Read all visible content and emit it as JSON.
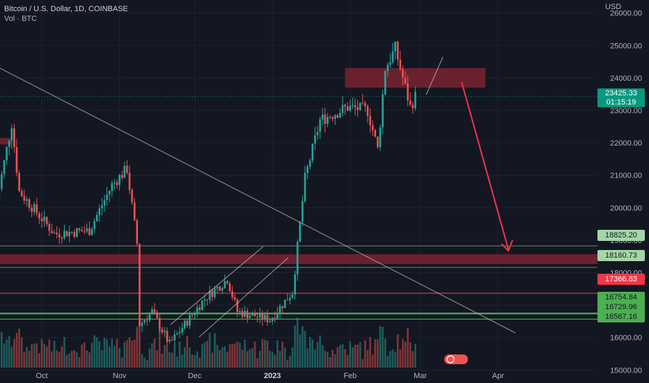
{
  "header": {
    "title": "Bitcoin / U.S. Dollar, 1D, COINBASE",
    "volume_label": "Vol · BTC"
  },
  "axis": {
    "currency": "USD"
  },
  "colors": {
    "background": "#131722",
    "grid": "#1e222d",
    "up": "#26a69a",
    "down": "#ef5350",
    "zone": "#7a2330",
    "trendline": "#c8c2b0",
    "green_level": "#4caf50",
    "red_level": "#f23645",
    "arrow": "#f23645"
  },
  "tags": {
    "last_price": "23425.33",
    "countdown": "01:15:19",
    "level_1": "18825.20",
    "level_2": "18160.73",
    "level_3": "17366.83",
    "level_4": "16754.84",
    "level_5": "16729.96",
    "level_6": "16567.16"
  },
  "chart_data": {
    "type": "candlestick",
    "title": "Bitcoin / U.S. Dollar, 1D, COINBASE",
    "ylabel": "USD",
    "ylim": [
      14600,
      26400
    ],
    "y_ticks": [
      15000,
      16000,
      17000,
      18000,
      19000,
      20000,
      21000,
      22000,
      23000,
      24000,
      25000,
      26000
    ],
    "x_ticks": [
      "Oct",
      "Nov",
      "Dec",
      "2023",
      "Feb",
      "Mar",
      "Apr"
    ],
    "price_path": [
      {
        "date": "2022-09-13",
        "price": 20200
      },
      {
        "date": "2022-09-19",
        "price": 22600
      },
      {
        "date": "2022-09-22",
        "price": 20500
      },
      {
        "date": "2022-10-06",
        "price": 19200
      },
      {
        "date": "2022-10-20",
        "price": 19300
      },
      {
        "date": "2022-10-29",
        "price": 20700
      },
      {
        "date": "2022-11-04",
        "price": 21200
      },
      {
        "date": "2022-11-08",
        "price": 18900
      },
      {
        "date": "2022-11-09",
        "price": 16400
      },
      {
        "date": "2022-11-14",
        "price": 16800
      },
      {
        "date": "2022-11-21",
        "price": 15800
      },
      {
        "date": "2022-12-05",
        "price": 17200
      },
      {
        "date": "2022-12-14",
        "price": 17800
      },
      {
        "date": "2022-12-18",
        "price": 16800
      },
      {
        "date": "2022-12-31",
        "price": 16550
      },
      {
        "date": "2023-01-09",
        "price": 17400
      },
      {
        "date": "2023-01-14",
        "price": 20900
      },
      {
        "date": "2023-01-20",
        "price": 22700
      },
      {
        "date": "2023-01-31",
        "price": 23100
      },
      {
        "date": "2023-02-08",
        "price": 23000
      },
      {
        "date": "2023-02-12",
        "price": 21800
      },
      {
        "date": "2023-02-15",
        "price": 24300
      },
      {
        "date": "2023-02-19",
        "price": 24900
      },
      {
        "date": "2023-02-22",
        "price": 24000
      },
      {
        "date": "2023-02-25",
        "price": 23100
      },
      {
        "date": "2023-02-27",
        "price": 23425
      }
    ],
    "resistance_zones": [
      {
        "from": "2023-01-30",
        "to": "2023-03-27",
        "low": 23700,
        "high": 24300
      },
      {
        "from": "2022-09-10",
        "to": "2022-09-19",
        "low": 21950,
        "high": 22150
      }
    ],
    "support_zone": {
      "low": 18160.73,
      "high": 18825.2
    },
    "horizontal_levels": [
      {
        "value": 17366.83,
        "color": "#f23645"
      },
      {
        "value": 16754.84,
        "color": "#4caf50"
      },
      {
        "value": 16729.96,
        "color": "#4caf50"
      },
      {
        "value": 16567.16,
        "color": "#4caf50"
      }
    ],
    "last_price": 23425.33,
    "projection_arrow": {
      "from": {
        "date": "2023-02-27",
        "price": 23800
      },
      "to": {
        "date": "2023-03-21",
        "price": 18300
      }
    }
  }
}
